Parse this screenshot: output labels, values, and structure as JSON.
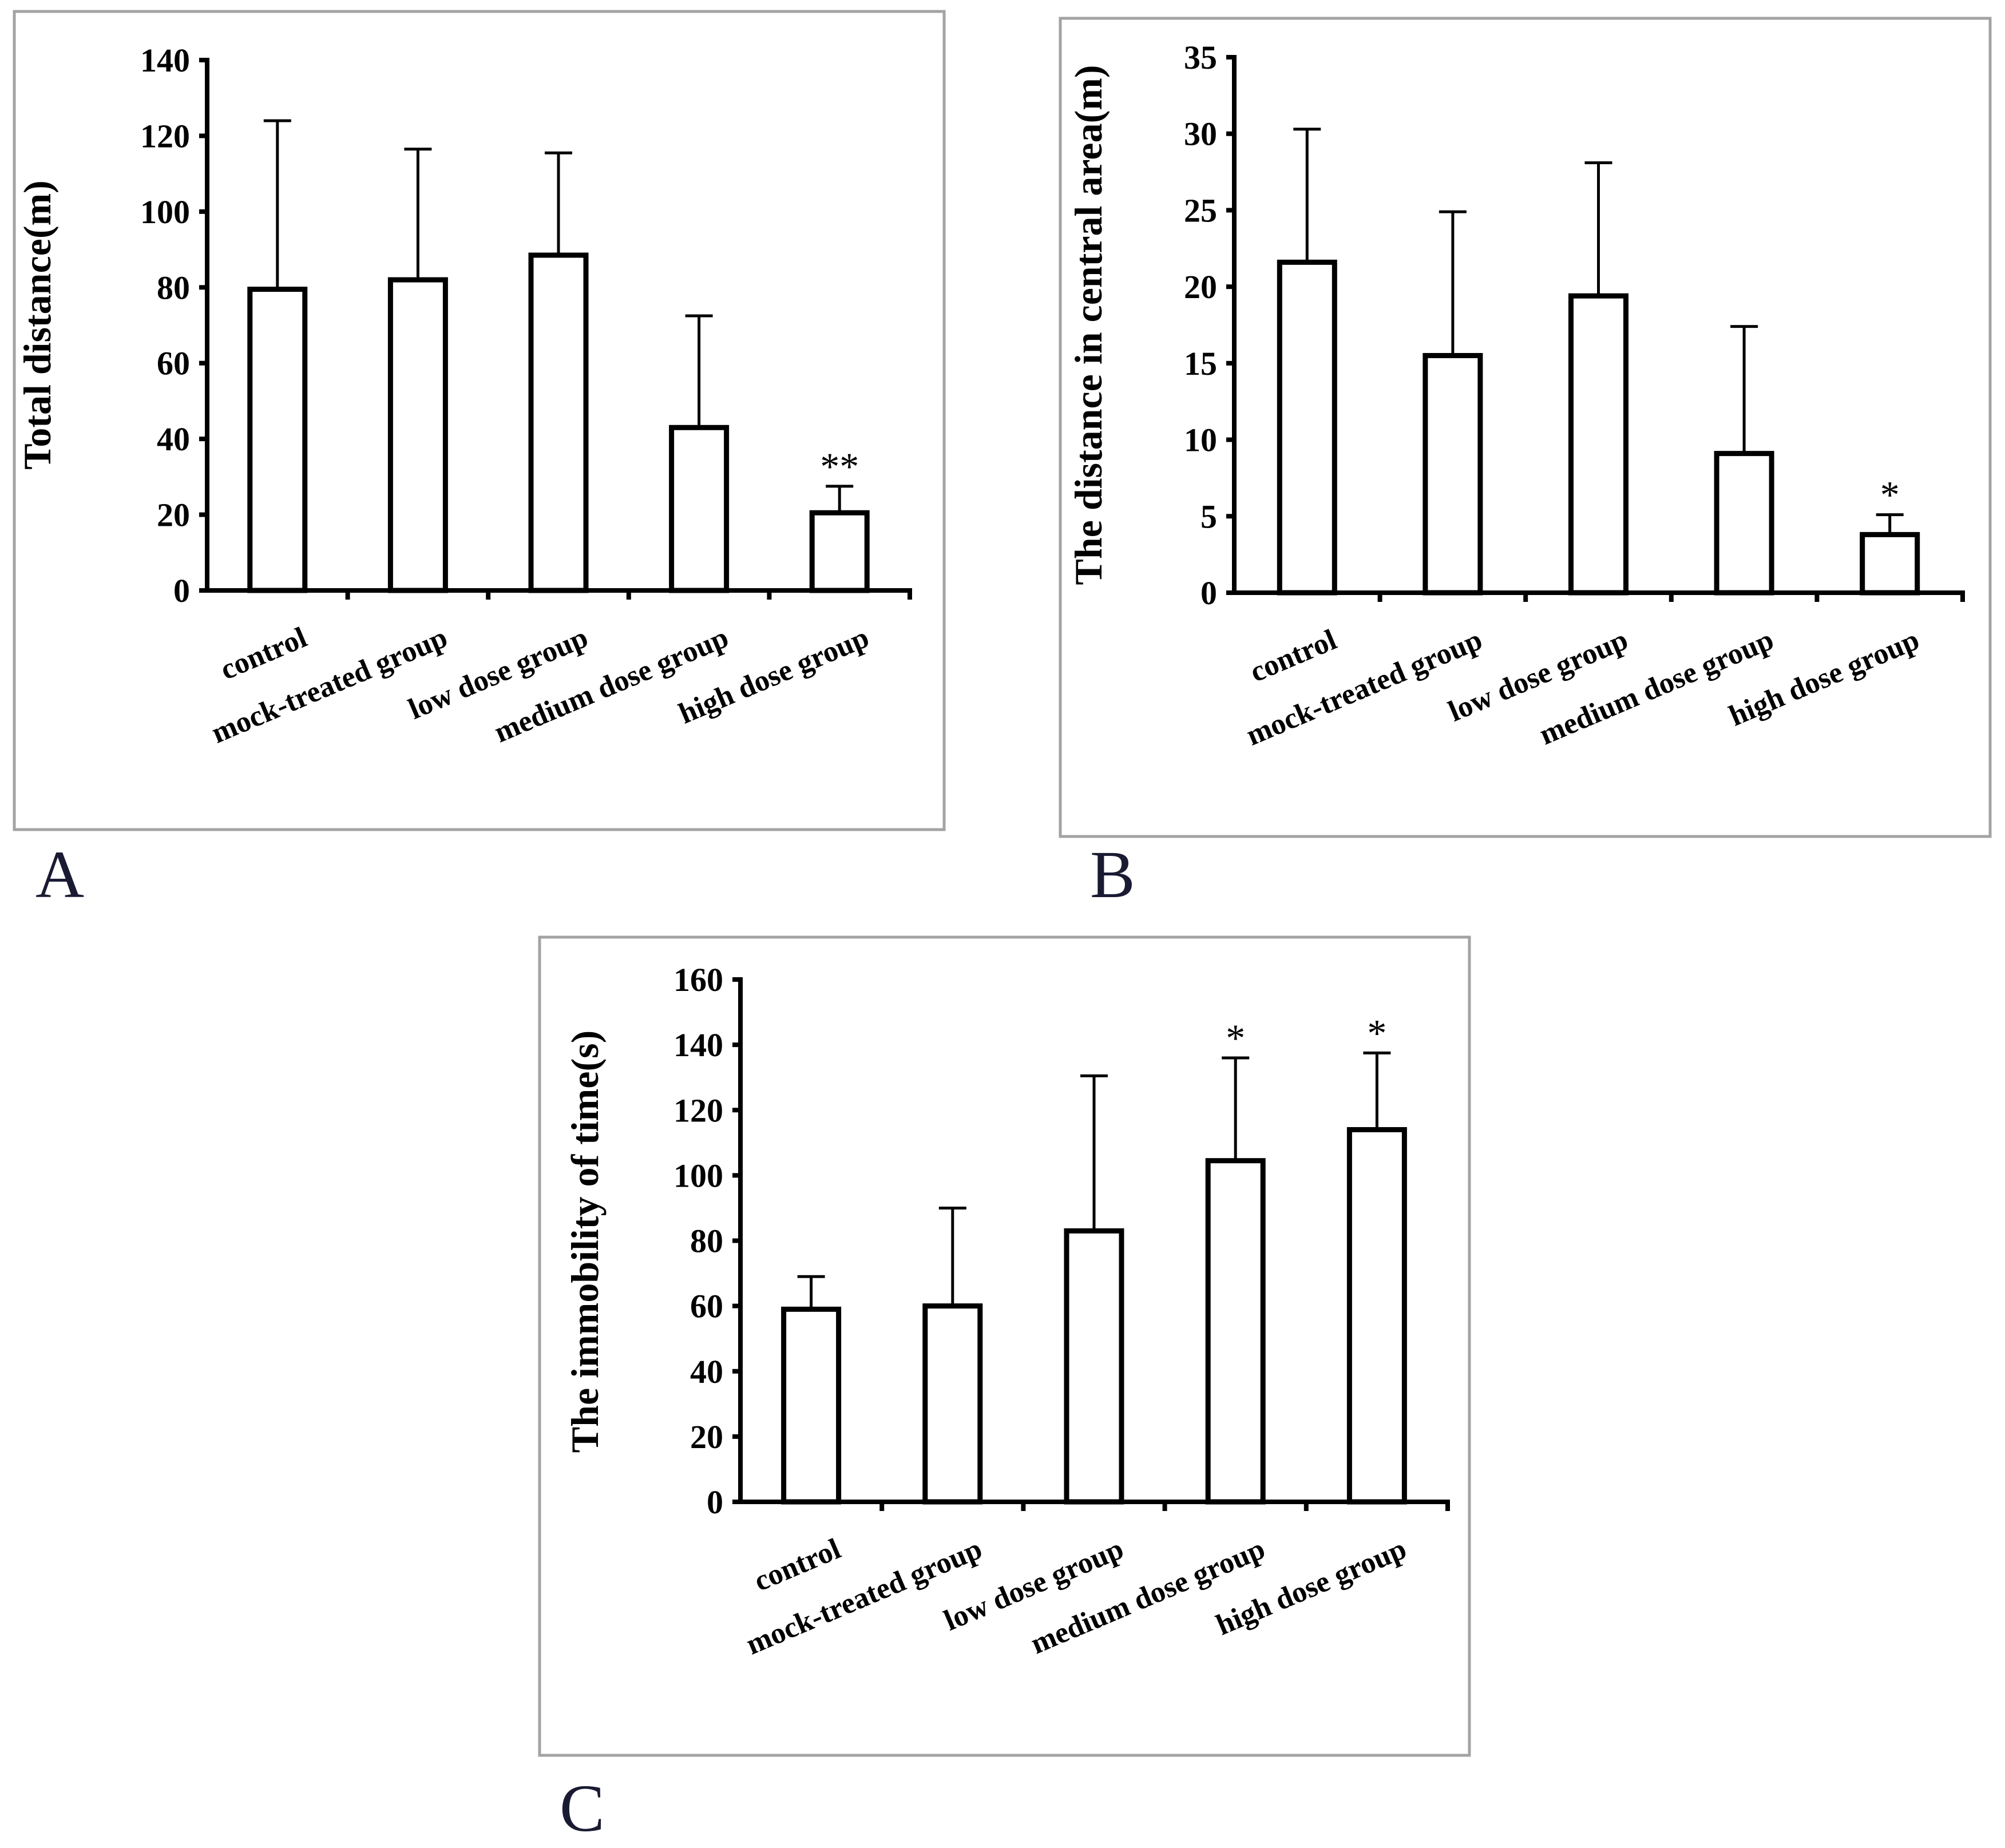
{
  "chart_data": [
    {
      "type": "bar",
      "panel_label": "A",
      "title": "",
      "xlabel": "",
      "ylabel": "Total distance(m)",
      "ylim": [
        0,
        140
      ],
      "yticks": [
        0,
        20,
        40,
        60,
        80,
        100,
        120,
        140
      ],
      "categories": [
        "control",
        "mock-treated group",
        "low dose group",
        "medium dose group",
        "high dose group"
      ],
      "values": [
        79.5,
        82,
        88.5,
        43,
        20.5
      ],
      "error_upper": [
        124,
        116.5,
        115.5,
        72.5,
        27.5
      ],
      "annotations": [
        "",
        "",
        "",
        "",
        "**"
      ]
    },
    {
      "type": "bar",
      "panel_label": "B",
      "title": "",
      "xlabel": "",
      "ylabel": "The distance in central area(m)",
      "ylim": [
        0,
        35
      ],
      "yticks": [
        0,
        5,
        10,
        15,
        20,
        25,
        30,
        35
      ],
      "categories": [
        "control",
        "mock-treated group",
        "low dose group",
        "medium dose group",
        "high dose group"
      ],
      "values": [
        21.6,
        15.5,
        19.4,
        9.1,
        3.8
      ],
      "error_upper": [
        30.3,
        24.9,
        28.1,
        17.4,
        5.1
      ],
      "annotations": [
        "",
        "",
        "",
        "",
        "*"
      ]
    },
    {
      "type": "bar",
      "panel_label": "C",
      "title": "",
      "xlabel": "",
      "ylabel": "The immobility of time(s)",
      "ylim": [
        0,
        160
      ],
      "yticks": [
        0,
        20,
        40,
        60,
        80,
        100,
        120,
        140,
        160
      ],
      "categories": [
        "control",
        "mock-treated group",
        "low dose group",
        "medium dose group",
        "high dose group"
      ],
      "values": [
        59,
        60,
        83,
        104.5,
        114
      ],
      "error_upper": [
        69,
        90,
        130.5,
        136,
        137.5
      ],
      "annotations": [
        "",
        "",
        "",
        "*",
        "*"
      ]
    }
  ]
}
